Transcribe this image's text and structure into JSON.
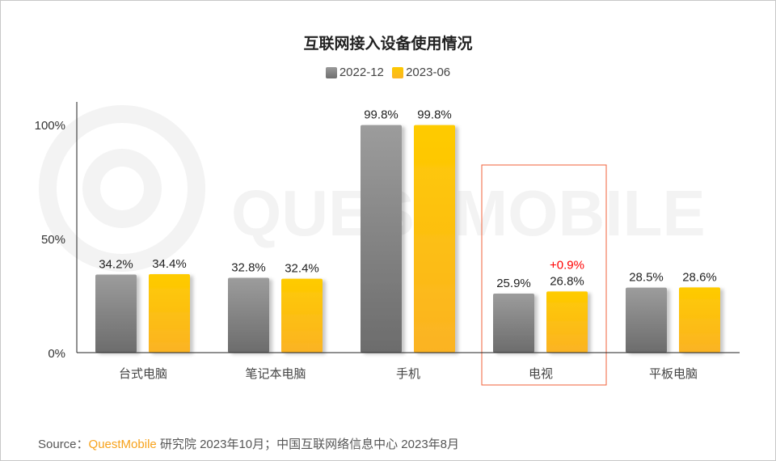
{
  "chart_data": {
    "type": "bar",
    "title": "互联网接入设备使用情况",
    "categories": [
      "台式电脑",
      "笔记本电脑",
      "手机",
      "电视",
      "平板电脑"
    ],
    "series": [
      {
        "name": "2022-12",
        "values": [
          34.2,
          32.8,
          99.8,
          25.9,
          28.5
        ],
        "labels": [
          "34.2%",
          "32.8%",
          "99.8%",
          "25.9%",
          "28.5%"
        ],
        "color": "#8a8a8a"
      },
      {
        "name": "2023-06",
        "values": [
          34.4,
          32.4,
          99.8,
          26.8,
          28.6
        ],
        "labels": [
          "34.4%",
          "32.4%",
          "99.8%",
          "26.8%",
          "28.6%"
        ],
        "color": "#fdc300"
      }
    ],
    "yticks": [
      "0%",
      "50%",
      "100%"
    ],
    "ylim": [
      0,
      110
    ],
    "grid": false,
    "legend": "top-center",
    "highlight": {
      "category": "电视",
      "annotation": "+0.9%",
      "annotation_color": "#ff0000",
      "box_color": "#f0603a"
    }
  },
  "watermark": "QUESTMOBILE",
  "source": {
    "prefix": "Source：",
    "brand": "QuestMobile",
    "text": " 研究院 2023年10月；中国互联网络信息中心 2023年8月"
  }
}
